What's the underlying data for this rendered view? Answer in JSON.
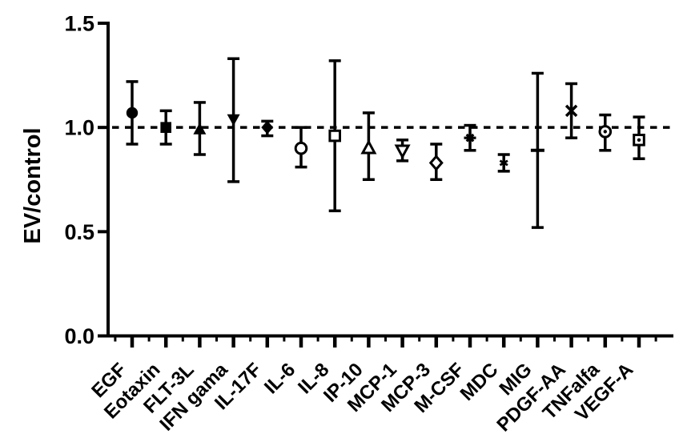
{
  "figure": {
    "background": "#ffffff",
    "foreground": "#000000"
  },
  "chart_data": {
    "type": "scatter",
    "title": "",
    "xlabel": "",
    "ylabel": "EV/control",
    "ylim": [
      0,
      1.5
    ],
    "yticks": [
      0.0,
      0.5,
      1.0,
      1.5
    ],
    "ytick_labels": [
      "0.0",
      "0.5",
      "1.0",
      "1.5"
    ],
    "reference_line_y": 1.0,
    "reference_line_style": "dashed",
    "grid": false,
    "legend": false,
    "x_label_rotation_deg": 45,
    "categories": [
      "EGF",
      "Eotaxin",
      "FLT-3L",
      "IFN gama",
      "IL-17F",
      "IL-6",
      "IL-8",
      "IP-10",
      "MCP-1",
      "MCP-3",
      "M-CSF",
      "MDC",
      "MIG",
      "PDGF-AA",
      "TNFalfa",
      "VEGF-A"
    ],
    "points": [
      {
        "label": "EGF",
        "marker": "circle-filled",
        "value": 1.07,
        "err_low": 0.92,
        "err_high": 1.22
      },
      {
        "label": "Eotaxin",
        "marker": "square-filled",
        "value": 1.0,
        "err_low": 0.92,
        "err_high": 1.08
      },
      {
        "label": "FLT-3L",
        "marker": "triangle-up-filled",
        "value": 0.99,
        "err_low": 0.87,
        "err_high": 1.12
      },
      {
        "label": "IFN gama",
        "marker": "triangle-down-filled",
        "value": 1.04,
        "err_low": 0.74,
        "err_high": 1.33
      },
      {
        "label": "IL-17F",
        "marker": "diamond-filled",
        "value": 1.0,
        "err_low": 0.96,
        "err_high": 1.03
      },
      {
        "label": "IL-6",
        "marker": "circle-open",
        "value": 0.9,
        "err_low": 0.81,
        "err_high": 1.0
      },
      {
        "label": "IL-8",
        "marker": "square-open",
        "value": 0.96,
        "err_low": 0.6,
        "err_high": 1.32
      },
      {
        "label": "IP-10",
        "marker": "triangle-up-open",
        "value": 0.9,
        "err_low": 0.75,
        "err_high": 1.07
      },
      {
        "label": "MCP-1",
        "marker": "triangle-down-open",
        "value": 0.89,
        "err_low": 0.84,
        "err_high": 0.94
      },
      {
        "label": "MCP-3",
        "marker": "diamond-open",
        "value": 0.83,
        "err_low": 0.75,
        "err_high": 0.92
      },
      {
        "label": "M-CSF",
        "marker": "star-filled",
        "value": 0.95,
        "err_low": 0.89,
        "err_high": 1.01
      },
      {
        "label": "MDC",
        "marker": "star-small",
        "value": 0.83,
        "err_low": 0.79,
        "err_high": 0.87
      },
      {
        "label": "MIG",
        "marker": "dash",
        "value": 0.89,
        "err_low": 0.52,
        "err_high": 1.26
      },
      {
        "label": "PDGF-AA",
        "marker": "x",
        "value": 1.08,
        "err_low": 0.95,
        "err_high": 1.21
      },
      {
        "label": "TNFalfa",
        "marker": "circle-dot",
        "value": 0.98,
        "err_low": 0.89,
        "err_high": 1.06
      },
      {
        "label": "VEGF-A",
        "marker": "square-dot",
        "value": 0.94,
        "err_low": 0.85,
        "err_high": 1.05
      }
    ]
  }
}
